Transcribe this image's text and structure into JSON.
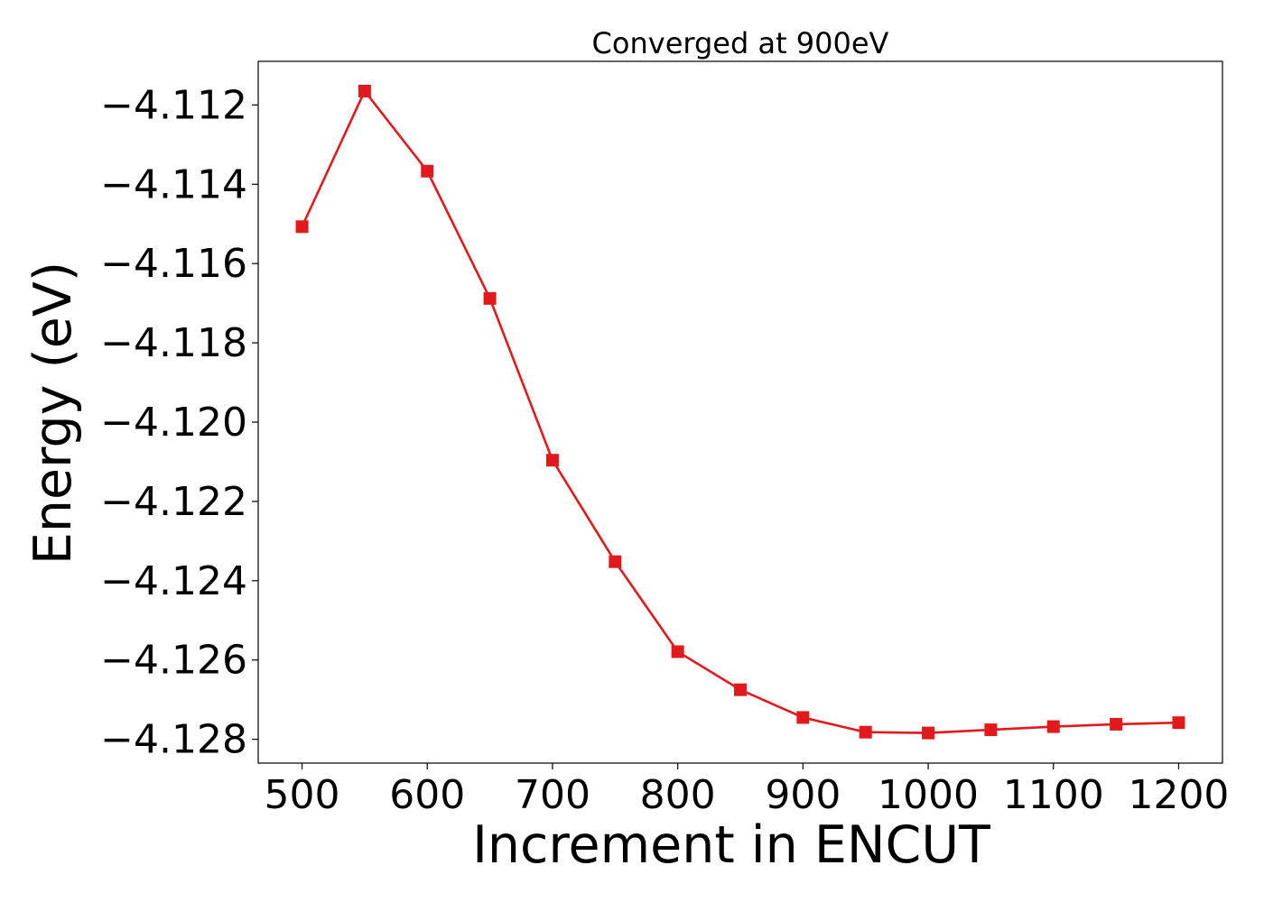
{
  "chart_data": {
    "type": "line",
    "title": "Converged at 900eV",
    "xlabel": "Increment in ENCUT",
    "ylabel": "Energy (eV)",
    "xlim": [
      465,
      1235
    ],
    "ylim": [
      -4.1286,
      -4.1109
    ],
    "x_ticks": [
      500,
      600,
      700,
      800,
      900,
      1000,
      1100,
      1200
    ],
    "x_tick_labels": [
      "500",
      "600",
      "700",
      "800",
      "900",
      "1000",
      "1100",
      "1200"
    ],
    "y_ticks": [
      -4.112,
      -4.114,
      -4.116,
      -4.118,
      -4.12,
      -4.122,
      -4.124,
      -4.126,
      -4.128
    ],
    "y_tick_labels": [
      "−4.112",
      "−4.114",
      "−4.116",
      "−4.118",
      "−4.120",
      "−4.122",
      "−4.124",
      "−4.126",
      "−4.128"
    ],
    "grid": false,
    "legend": "none",
    "series": [
      {
        "color": "#e31a1c",
        "marker": "square",
        "x": [
          500,
          550,
          600,
          650,
          700,
          750,
          800,
          850,
          900,
          950,
          1000,
          1050,
          1100,
          1150,
          1200
        ],
        "y": [
          -4.11507,
          -4.11165,
          -4.11367,
          -4.11688,
          -4.12096,
          -4.12352,
          -4.12579,
          -4.12675,
          -4.12745,
          -4.12782,
          -4.12784,
          -4.12776,
          -4.12768,
          -4.12762,
          -4.12758
        ]
      }
    ]
  }
}
